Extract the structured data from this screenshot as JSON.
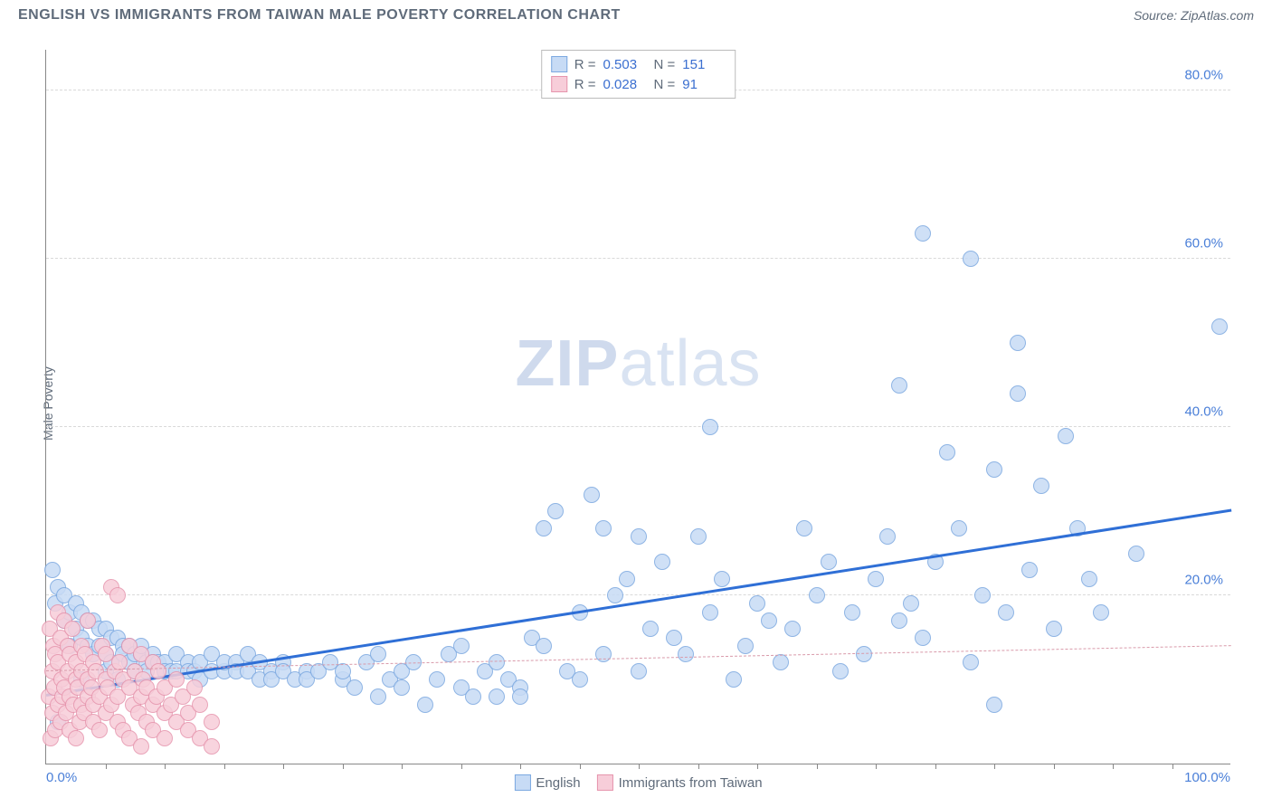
{
  "title": "ENGLISH VS IMMIGRANTS FROM TAIWAN MALE POVERTY CORRELATION CHART",
  "source": "Source: ZipAtlas.com",
  "y_axis_label": "Male Poverty",
  "watermark_bold": "ZIP",
  "watermark_light": "atlas",
  "chart": {
    "type": "scatter",
    "xlim": [
      0,
      100
    ],
    "ylim": [
      0,
      85
    ],
    "y_ticks": [
      20,
      40,
      60,
      80
    ],
    "y_tick_labels": [
      "20.0%",
      "40.0%",
      "60.0%",
      "80.0%"
    ],
    "x_tick_labels": [
      "0.0%",
      "100.0%"
    ],
    "minor_x_ticks": [
      5,
      10,
      15,
      20,
      25,
      30,
      35,
      40,
      45,
      50,
      55,
      60,
      65,
      70,
      75,
      80,
      85,
      90,
      95
    ],
    "background_color": "#ffffff",
    "grid_color": "#d9d9d9",
    "axis_color": "#888888",
    "tick_label_color": "#4a7fd8",
    "point_radius": 9,
    "point_border_width": 1.5,
    "series": {
      "english": {
        "label": "English",
        "fill": "#c7dbf5",
        "stroke": "#7ba8e0",
        "trend_color": "#2f6fd6",
        "trend_width": 3,
        "trend_dash": "solid",
        "R": "0.503",
        "N": "151",
        "trend": {
          "x1": 0,
          "y1": 8,
          "x2": 100,
          "y2": 30
        },
        "data": [
          [
            0.5,
            23
          ],
          [
            0.8,
            19
          ],
          [
            1,
            5
          ],
          [
            1,
            21
          ],
          [
            1.5,
            17
          ],
          [
            1.5,
            20
          ],
          [
            2,
            18
          ],
          [
            2,
            14
          ],
          [
            2.5,
            19
          ],
          [
            2.5,
            16
          ],
          [
            3,
            18
          ],
          [
            3,
            15
          ],
          [
            3,
            10
          ],
          [
            3.5,
            17
          ],
          [
            3.5,
            14
          ],
          [
            4,
            17
          ],
          [
            4,
            13
          ],
          [
            4.5,
            16
          ],
          [
            4.5,
            14
          ],
          [
            5,
            16
          ],
          [
            5,
            13
          ],
          [
            5,
            11
          ],
          [
            5.5,
            15
          ],
          [
            5.5,
            12
          ],
          [
            6,
            15
          ],
          [
            6,
            10
          ],
          [
            6.5,
            14
          ],
          [
            6.5,
            13
          ],
          [
            7,
            14
          ],
          [
            7,
            12
          ],
          [
            7.5,
            13
          ],
          [
            7.5,
            11
          ],
          [
            8,
            13
          ],
          [
            8,
            14
          ],
          [
            8.5,
            12
          ],
          [
            8.5,
            11
          ],
          [
            9,
            13
          ],
          [
            9,
            12
          ],
          [
            9.5,
            12
          ],
          [
            10,
            12
          ],
          [
            10,
            11
          ],
          [
            10.5,
            11
          ],
          [
            11,
            13
          ],
          [
            11,
            11
          ],
          [
            12,
            12
          ],
          [
            12,
            11
          ],
          [
            12.5,
            11
          ],
          [
            13,
            12
          ],
          [
            13,
            10
          ],
          [
            14,
            11
          ],
          [
            14,
            13
          ],
          [
            15,
            11
          ],
          [
            15,
            12
          ],
          [
            16,
            12
          ],
          [
            16,
            11
          ],
          [
            17,
            11
          ],
          [
            17,
            13
          ],
          [
            18,
            10
          ],
          [
            18,
            12
          ],
          [
            19,
            11
          ],
          [
            19,
            10
          ],
          [
            20,
            12
          ],
          [
            20,
            11
          ],
          [
            21,
            10
          ],
          [
            22,
            11
          ],
          [
            22,
            10
          ],
          [
            23,
            11
          ],
          [
            24,
            12
          ],
          [
            25,
            10
          ],
          [
            25,
            11
          ],
          [
            26,
            9
          ],
          [
            27,
            12
          ],
          [
            28,
            8
          ],
          [
            28,
            13
          ],
          [
            29,
            10
          ],
          [
            30,
            11
          ],
          [
            30,
            9
          ],
          [
            31,
            12
          ],
          [
            32,
            7
          ],
          [
            33,
            10
          ],
          [
            34,
            13
          ],
          [
            35,
            9
          ],
          [
            35,
            14
          ],
          [
            36,
            8
          ],
          [
            37,
            11
          ],
          [
            38,
            8
          ],
          [
            38,
            12
          ],
          [
            39,
            10
          ],
          [
            40,
            9
          ],
          [
            40,
            8
          ],
          [
            41,
            15
          ],
          [
            42,
            14
          ],
          [
            42,
            28
          ],
          [
            43,
            30
          ],
          [
            44,
            11
          ],
          [
            45,
            18
          ],
          [
            45,
            10
          ],
          [
            46,
            32
          ],
          [
            47,
            13
          ],
          [
            47,
            28
          ],
          [
            48,
            20
          ],
          [
            49,
            22
          ],
          [
            50,
            11
          ],
          [
            50,
            27
          ],
          [
            51,
            16
          ],
          [
            52,
            24
          ],
          [
            53,
            15
          ],
          [
            54,
            13
          ],
          [
            55,
            27
          ],
          [
            56,
            18
          ],
          [
            56,
            40
          ],
          [
            57,
            22
          ],
          [
            58,
            10
          ],
          [
            59,
            14
          ],
          [
            60,
            19
          ],
          [
            61,
            17
          ],
          [
            62,
            12
          ],
          [
            63,
            16
          ],
          [
            64,
            28
          ],
          [
            65,
            20
          ],
          [
            66,
            24
          ],
          [
            67,
            11
          ],
          [
            68,
            18
          ],
          [
            69,
            13
          ],
          [
            70,
            22
          ],
          [
            71,
            27
          ],
          [
            72,
            45
          ],
          [
            72,
            17
          ],
          [
            73,
            19
          ],
          [
            74,
            63
          ],
          [
            74,
            15
          ],
          [
            75,
            24
          ],
          [
            76,
            37
          ],
          [
            77,
            28
          ],
          [
            78,
            60
          ],
          [
            78,
            12
          ],
          [
            79,
            20
          ],
          [
            80,
            35
          ],
          [
            80,
            7
          ],
          [
            81,
            18
          ],
          [
            82,
            44
          ],
          [
            82,
            50
          ],
          [
            83,
            23
          ],
          [
            84,
            33
          ],
          [
            85,
            16
          ],
          [
            86,
            39
          ],
          [
            87,
            28
          ],
          [
            88,
            22
          ],
          [
            89,
            18
          ],
          [
            92,
            25
          ],
          [
            99,
            52
          ]
        ]
      },
      "taiwan": {
        "label": "Immigrants from Taiwan",
        "fill": "#f7cdd9",
        "stroke": "#e695ad",
        "trend_color": "#d99aaa",
        "trend_width": 1.5,
        "trend_dash": "dashed",
        "R": "0.028",
        "N": "91",
        "trend": {
          "x1": 0,
          "y1": 11,
          "x2": 100,
          "y2": 14
        },
        "data": [
          [
            0.2,
            8
          ],
          [
            0.3,
            16
          ],
          [
            0.4,
            3
          ],
          [
            0.5,
            11
          ],
          [
            0.5,
            6
          ],
          [
            0.6,
            14
          ],
          [
            0.7,
            9
          ],
          [
            0.8,
            4
          ],
          [
            0.8,
            13
          ],
          [
            1,
            18
          ],
          [
            1,
            7
          ],
          [
            1,
            12
          ],
          [
            1.2,
            15
          ],
          [
            1.2,
            5
          ],
          [
            1.3,
            10
          ],
          [
            1.4,
            8
          ],
          [
            1.5,
            9
          ],
          [
            1.5,
            17
          ],
          [
            1.7,
            6
          ],
          [
            1.8,
            11
          ],
          [
            1.8,
            14
          ],
          [
            2,
            13
          ],
          [
            2,
            4
          ],
          [
            2,
            8
          ],
          [
            2.2,
            16
          ],
          [
            2.3,
            7
          ],
          [
            2.5,
            10
          ],
          [
            2.5,
            12
          ],
          [
            2.5,
            3
          ],
          [
            2.7,
            9
          ],
          [
            2.8,
            5
          ],
          [
            3,
            11
          ],
          [
            3,
            14
          ],
          [
            3,
            7
          ],
          [
            3.2,
            6
          ],
          [
            3.3,
            13
          ],
          [
            3.5,
            8
          ],
          [
            3.5,
            10
          ],
          [
            3.5,
            17
          ],
          [
            3.8,
            9
          ],
          [
            4,
            5
          ],
          [
            4,
            12
          ],
          [
            4,
            7
          ],
          [
            4.2,
            11
          ],
          [
            4.5,
            8
          ],
          [
            4.5,
            4
          ],
          [
            4.7,
            14
          ],
          [
            5,
            10
          ],
          [
            5,
            6
          ],
          [
            5,
            13
          ],
          [
            5.2,
            9
          ],
          [
            5.5,
            21
          ],
          [
            5.5,
            7
          ],
          [
            5.8,
            11
          ],
          [
            6,
            5
          ],
          [
            6,
            20
          ],
          [
            6,
            8
          ],
          [
            6.2,
            12
          ],
          [
            6.5,
            10
          ],
          [
            6.5,
            4
          ],
          [
            7,
            9
          ],
          [
            7,
            3
          ],
          [
            7,
            14
          ],
          [
            7.3,
            7
          ],
          [
            7.5,
            11
          ],
          [
            7.8,
            6
          ],
          [
            8,
            8
          ],
          [
            8,
            13
          ],
          [
            8,
            2
          ],
          [
            8.2,
            10
          ],
          [
            8.5,
            5
          ],
          [
            8.5,
            9
          ],
          [
            9,
            7
          ],
          [
            9,
            12
          ],
          [
            9,
            4
          ],
          [
            9.3,
            8
          ],
          [
            9.5,
            11
          ],
          [
            10,
            6
          ],
          [
            10,
            3
          ],
          [
            10,
            9
          ],
          [
            10.5,
            7
          ],
          [
            11,
            5
          ],
          [
            11,
            10
          ],
          [
            11.5,
            8
          ],
          [
            12,
            4
          ],
          [
            12,
            6
          ],
          [
            12.5,
            9
          ],
          [
            13,
            3
          ],
          [
            13,
            7
          ],
          [
            14,
            5
          ],
          [
            14,
            2
          ]
        ]
      }
    }
  },
  "legend_stats_label_R": "R =",
  "legend_stats_label_N": "N ="
}
